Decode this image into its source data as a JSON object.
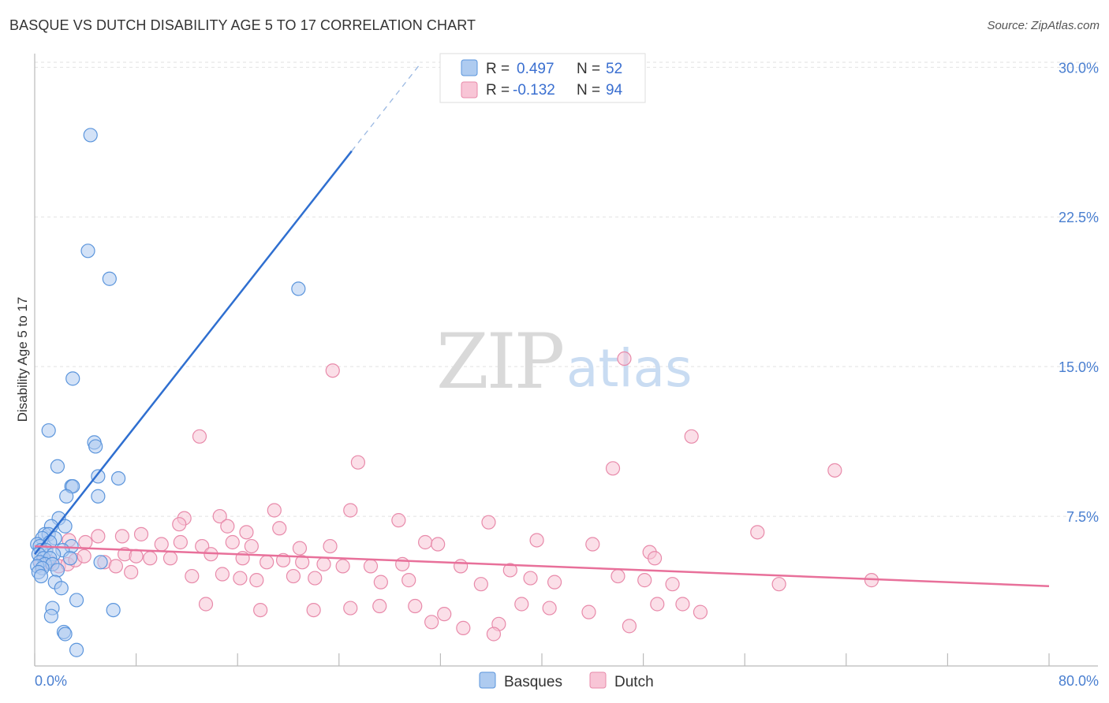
{
  "title": "BASQUE VS DUTCH DISABILITY AGE 5 TO 17 CORRELATION CHART",
  "source": "Source: ZipAtlas.com",
  "watermark": {
    "zip": "ZIP",
    "atlas": "atlas"
  },
  "legend": {
    "r_label": "R =",
    "n_label": "N =",
    "basques": {
      "r": "0.497",
      "n": "52"
    },
    "dutch": {
      "r": "-0.132",
      "n": "94"
    }
  },
  "colors": {
    "basques_fill": "#aecbf0",
    "basques_stroke": "#5b95dc",
    "basques_line": "#2f6fd0",
    "dutch_fill": "#f8c5d6",
    "dutch_stroke": "#e88aaa",
    "dutch_line": "#e8709a"
  },
  "chart_data": {
    "type": "scatter",
    "title": "BASQUE VS DUTCH DISABILITY AGE 5 TO 17 CORRELATION CHART",
    "xlabel": "",
    "ylabel": "Disability Age 5 to 17",
    "xlim": [
      0,
      80
    ],
    "ylim": [
      0,
      31
    ],
    "x_tick_labels": [
      "0.0%",
      "80.0%"
    ],
    "y_ticks": [
      7.5,
      15.0,
      22.5,
      30.0
    ],
    "y_tick_labels": [
      "7.5%",
      "15.0%",
      "22.5%",
      "30.0%"
    ],
    "grid": true,
    "legend_position": "bottom",
    "series": [
      {
        "name": "Basques",
        "r": 0.497,
        "n": 52,
        "trend": {
          "x0": 0,
          "y0": 5.6,
          "x1": 25,
          "y1": 25.8,
          "dashed_to_x": 30.5
        },
        "points": [
          [
            4.4,
            26.6
          ],
          [
            4.2,
            20.8
          ],
          [
            5.9,
            19.4
          ],
          [
            20.8,
            18.9
          ],
          [
            3.0,
            14.4
          ],
          [
            1.1,
            11.8
          ],
          [
            4.7,
            11.2
          ],
          [
            4.8,
            11.0
          ],
          [
            1.8,
            10.0
          ],
          [
            5.0,
            9.5
          ],
          [
            6.6,
            9.4
          ],
          [
            2.9,
            9.0
          ],
          [
            3.0,
            9.0
          ],
          [
            2.5,
            8.5
          ],
          [
            5.0,
            8.5
          ],
          [
            1.9,
            7.4
          ],
          [
            1.3,
            7.0
          ],
          [
            2.4,
            7.0
          ],
          [
            0.8,
            6.6
          ],
          [
            1.1,
            6.6
          ],
          [
            0.6,
            6.4
          ],
          [
            1.6,
            6.4
          ],
          [
            1.2,
            6.2
          ],
          [
            0.2,
            6.1
          ],
          [
            0.4,
            6.0
          ],
          [
            2.9,
            6.0
          ],
          [
            0.5,
            5.8
          ],
          [
            0.9,
            5.8
          ],
          [
            2.2,
            5.8
          ],
          [
            0.3,
            5.6
          ],
          [
            1.5,
            5.6
          ],
          [
            0.7,
            5.4
          ],
          [
            1.2,
            5.4
          ],
          [
            2.8,
            5.4
          ],
          [
            0.4,
            5.2
          ],
          [
            0.8,
            5.1
          ],
          [
            1.4,
            5.1
          ],
          [
            0.2,
            5.0
          ],
          [
            0.6,
            4.9
          ],
          [
            5.2,
            5.2
          ],
          [
            1.8,
            4.8
          ],
          [
            0.3,
            4.7
          ],
          [
            0.5,
            4.5
          ],
          [
            1.6,
            4.2
          ],
          [
            2.1,
            3.9
          ],
          [
            3.3,
            3.3
          ],
          [
            1.4,
            2.9
          ],
          [
            6.2,
            2.8
          ],
          [
            1.3,
            2.5
          ],
          [
            2.3,
            1.7
          ],
          [
            2.4,
            1.6
          ],
          [
            3.3,
            0.8
          ]
        ]
      },
      {
        "name": "Dutch",
        "r": -0.132,
        "n": 94,
        "trend": {
          "x0": 0,
          "y0": 6.0,
          "x1": 80,
          "y1": 4.0
        },
        "points": [
          [
            46.5,
            15.4
          ],
          [
            23.5,
            14.8
          ],
          [
            13.0,
            11.5
          ],
          [
            51.8,
            11.5
          ],
          [
            25.5,
            10.2
          ],
          [
            45.6,
            9.9
          ],
          [
            63.1,
            9.8
          ],
          [
            18.9,
            7.8
          ],
          [
            24.9,
            7.8
          ],
          [
            11.8,
            7.4
          ],
          [
            14.6,
            7.5
          ],
          [
            11.4,
            7.1
          ],
          [
            15.2,
            7.0
          ],
          [
            28.7,
            7.3
          ],
          [
            35.8,
            7.2
          ],
          [
            16.7,
            6.7
          ],
          [
            19.3,
            6.9
          ],
          [
            57.0,
            6.7
          ],
          [
            6.9,
            6.5
          ],
          [
            5.0,
            6.5
          ],
          [
            8.4,
            6.6
          ],
          [
            2.7,
            6.3
          ],
          [
            4.0,
            6.2
          ],
          [
            10.0,
            6.1
          ],
          [
            11.5,
            6.2
          ],
          [
            13.2,
            6.0
          ],
          [
            15.6,
            6.2
          ],
          [
            17.1,
            6.0
          ],
          [
            20.9,
            5.9
          ],
          [
            23.3,
            6.0
          ],
          [
            30.8,
            6.2
          ],
          [
            31.8,
            6.1
          ],
          [
            39.6,
            6.3
          ],
          [
            44.0,
            6.1
          ],
          [
            48.5,
            5.7
          ],
          [
            48.9,
            5.4
          ],
          [
            7.1,
            5.6
          ],
          [
            8.0,
            5.5
          ],
          [
            9.1,
            5.4
          ],
          [
            10.7,
            5.4
          ],
          [
            13.9,
            5.6
          ],
          [
            16.4,
            5.4
          ],
          [
            18.3,
            5.2
          ],
          [
            19.6,
            5.3
          ],
          [
            21.1,
            5.2
          ],
          [
            22.8,
            5.1
          ],
          [
            24.3,
            5.0
          ],
          [
            26.5,
            5.0
          ],
          [
            29.0,
            5.1
          ],
          [
            33.6,
            5.0
          ],
          [
            37.5,
            4.8
          ],
          [
            0.5,
            5.1
          ],
          [
            1.2,
            5.2
          ],
          [
            1.9,
            5.0
          ],
          [
            2.6,
            5.1
          ],
          [
            3.2,
            5.3
          ],
          [
            3.9,
            5.5
          ],
          [
            5.5,
            5.2
          ],
          [
            6.4,
            5.0
          ],
          [
            7.6,
            4.7
          ],
          [
            12.4,
            4.5
          ],
          [
            14.8,
            4.6
          ],
          [
            16.2,
            4.4
          ],
          [
            17.5,
            4.3
          ],
          [
            20.4,
            4.5
          ],
          [
            22.1,
            4.4
          ],
          [
            27.3,
            4.2
          ],
          [
            29.5,
            4.3
          ],
          [
            35.2,
            4.1
          ],
          [
            39.1,
            4.4
          ],
          [
            41.0,
            4.2
          ],
          [
            46.0,
            4.5
          ],
          [
            48.1,
            4.3
          ],
          [
            50.3,
            4.1
          ],
          [
            58.7,
            4.1
          ],
          [
            66.0,
            4.3
          ],
          [
            13.5,
            3.1
          ],
          [
            17.8,
            2.8
          ],
          [
            22.0,
            2.8
          ],
          [
            24.9,
            2.9
          ],
          [
            27.2,
            3.0
          ],
          [
            30.0,
            3.0
          ],
          [
            32.3,
            2.6
          ],
          [
            38.4,
            3.1
          ],
          [
            40.6,
            2.9
          ],
          [
            43.7,
            2.7
          ],
          [
            49.1,
            3.1
          ],
          [
            51.1,
            3.1
          ],
          [
            52.5,
            2.7
          ],
          [
            31.3,
            2.2
          ],
          [
            36.6,
            2.1
          ],
          [
            46.9,
            2.0
          ],
          [
            33.8,
            1.9
          ],
          [
            36.2,
            1.6
          ]
        ]
      }
    ]
  },
  "bottom_legend": {
    "basques": "Basques",
    "dutch": "Dutch"
  }
}
